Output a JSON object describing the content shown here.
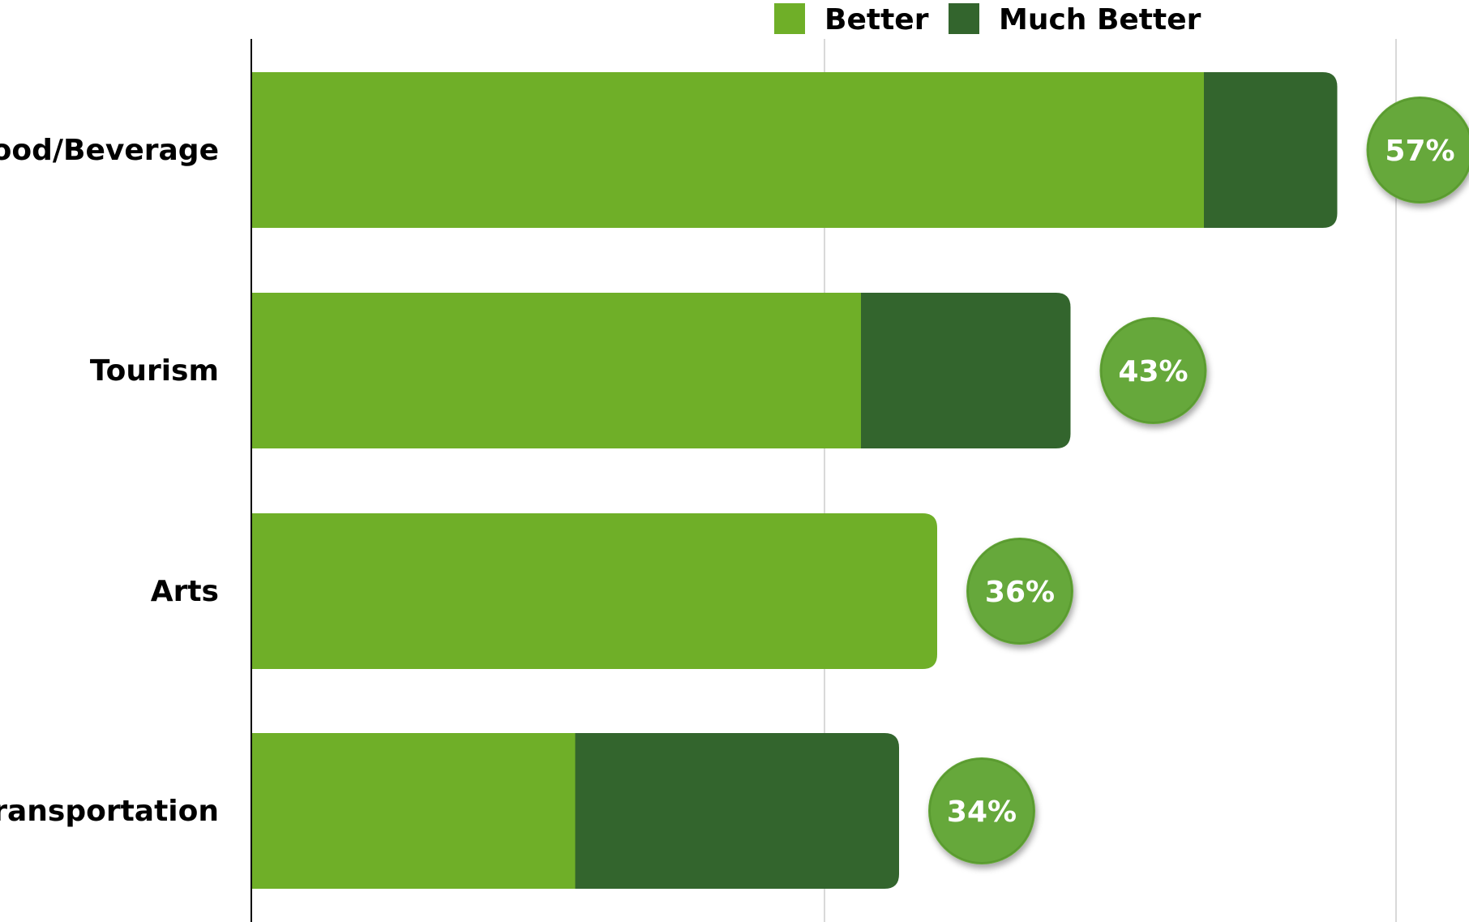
{
  "chart_data": {
    "type": "bar",
    "orientation": "horizontal",
    "stacked": true,
    "title": "",
    "xlabel": "",
    "ylabel": "",
    "categories": [
      "Food/Beverage",
      "Tourism",
      "Arts",
      "Transportation"
    ],
    "series": [
      {
        "name": "Better",
        "values": [
          50,
          32,
          36,
          17
        ],
        "color": "#6FAF28"
      },
      {
        "name": "Much Better",
        "values": [
          7,
          11,
          0,
          17
        ],
        "color": "#33652D"
      }
    ],
    "totals": [
      57,
      43,
      36,
      34
    ],
    "total_labels": [
      "57%",
      "43%",
      "36%",
      "34%"
    ],
    "xlim": [
      0,
      60
    ],
    "grid": true,
    "x_tick_labels_visible": false,
    "legend": {
      "position": "top-center",
      "entries": [
        "Better",
        "Much Better"
      ]
    },
    "bubble_color": "#66A83A"
  }
}
